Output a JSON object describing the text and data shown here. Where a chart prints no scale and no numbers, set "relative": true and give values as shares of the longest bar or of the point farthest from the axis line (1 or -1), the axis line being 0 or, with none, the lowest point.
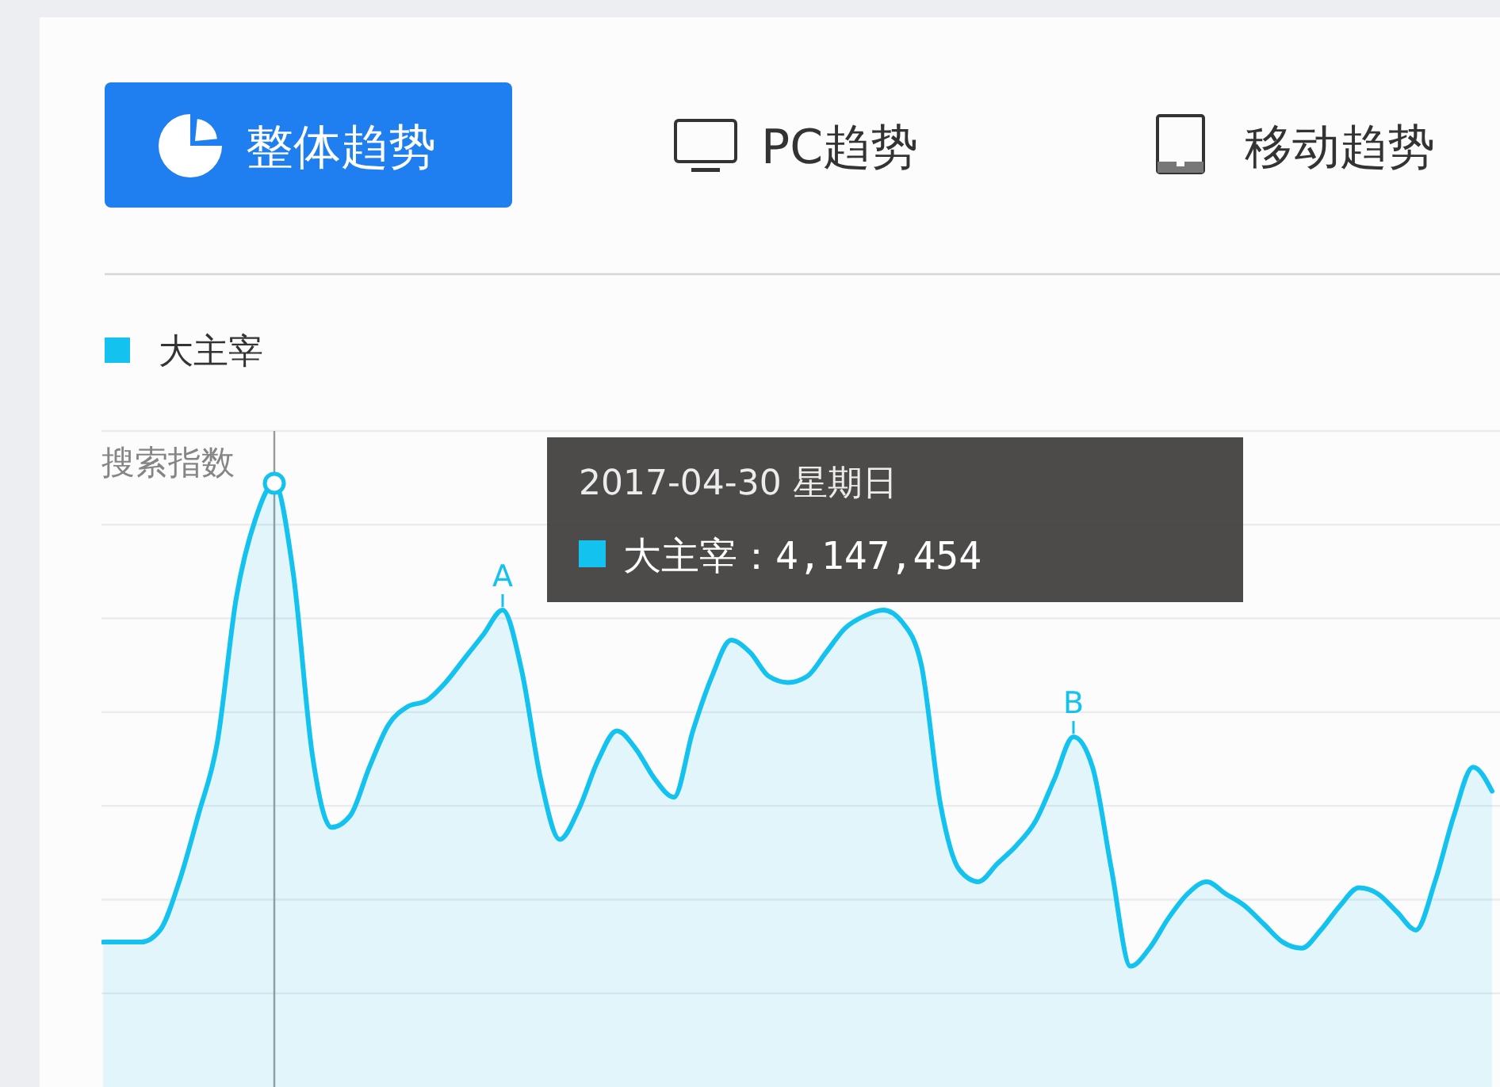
{
  "chart_data": {
    "type": "area",
    "ylabel": "搜索指数",
    "legend": "top left",
    "grid": "y",
    "relative": true,
    "categories": [
      null,
      null,
      null,
      null,
      null,
      null,
      null,
      null,
      null,
      null,
      null,
      null,
      null,
      null,
      null,
      null,
      null,
      null,
      null,
      null,
      null,
      null,
      null,
      null,
      null,
      null,
      null,
      null,
      null,
      null,
      null,
      null,
      null,
      null,
      null,
      null,
      null,
      null,
      null,
      null,
      null,
      null,
      null,
      null,
      null,
      null,
      null,
      null,
      null,
      null,
      null,
      null,
      null,
      null,
      null,
      null,
      null,
      null,
      null,
      null,
      null,
      null,
      null,
      null,
      null,
      null,
      null,
      null,
      null,
      null,
      null,
      null,
      null,
      null
    ],
    "series": [
      {
        "name": "大主宰",
        "color": "#13c2ee",
        "values": [
          0.24,
          0.24,
          0.24,
          0.26,
          0.34,
          0.45,
          0.57,
          0.81,
          0.94,
          1,
          0.85,
          0.55,
          0.43,
          0.45,
          0.53,
          0.6,
          0.63,
          0.64,
          0.67,
          0.71,
          0.75,
          0.79,
          0.69,
          0.51,
          0.41,
          0.46,
          0.54,
          0.59,
          0.56,
          0.51,
          0.48,
          0.59,
          0.68,
          0.74,
          0.72,
          0.68,
          0.67,
          0.68,
          0.72,
          0.76,
          0.78,
          0.79,
          0.77,
          0.7,
          0.47,
          0.36,
          0.34,
          0.37,
          0.4,
          0.44,
          0.51,
          0.58,
          0.53,
          0.36,
          0.2,
          0.23,
          0.28,
          0.32,
          0.34,
          0.32,
          0.3,
          0.27,
          0.24,
          0.23,
          0.26,
          0.3,
          0.33,
          0.32,
          0.29,
          0.26,
          0.34,
          0.45,
          0.53,
          0.49
        ]
      }
    ],
    "annotations": [
      "整体趋势",
      "PC趋势",
      "移动趋势",
      {
        "text": "A",
        "y": 0.79
      },
      {
        "text": "B",
        "y": 0.58
      },
      "2017-04-30 星期日",
      "大主宰：4,147,454"
    ]
  }
}
